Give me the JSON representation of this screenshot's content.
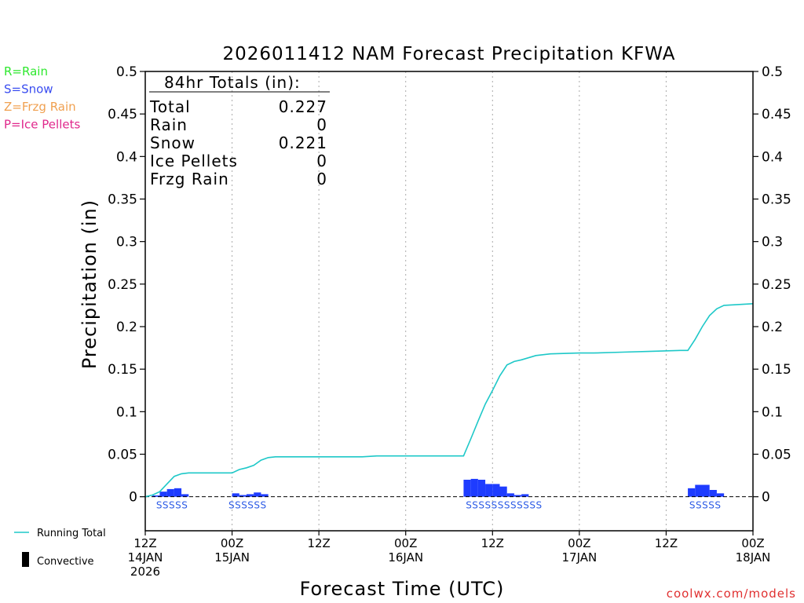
{
  "chart_data": {
    "type": "bar+line",
    "title": "2026011412 NAM Forecast Precipitation KFWA",
    "xlabel": "Forecast Time (UTC)",
    "ylabel": "Precipitation (in)",
    "ylim": [
      -0.04,
      0.5
    ],
    "yticks": [
      "0",
      "0.05",
      "0.1",
      "0.15",
      "0.2",
      "0.25",
      "0.3",
      "0.35",
      "0.4",
      "0.45",
      "0.5"
    ],
    "ytick_values": [
      0,
      0.05,
      0.1,
      0.15,
      0.2,
      0.25,
      0.3,
      0.35,
      0.4,
      0.45,
      0.5
    ],
    "xlim_hours": [
      0,
      84
    ],
    "xticks": [
      {
        "hour": 0,
        "line1": "12Z",
        "line2": "14JAN",
        "line3": "2026"
      },
      {
        "hour": 12,
        "line1": "00Z",
        "line2": "15JAN",
        "line3": ""
      },
      {
        "hour": 24,
        "line1": "12Z",
        "line2": "",
        "line3": ""
      },
      {
        "hour": 36,
        "line1": "00Z",
        "line2": "16JAN",
        "line3": ""
      },
      {
        "hour": 48,
        "line1": "12Z",
        "line2": "",
        "line3": ""
      },
      {
        "hour": 60,
        "line1": "00Z",
        "line2": "17JAN",
        "line3": ""
      },
      {
        "hour": 72,
        "line1": "12Z",
        "line2": "",
        "line3": ""
      },
      {
        "hour": 84,
        "line1": "00Z",
        "line2": "18JAN",
        "line3": ""
      }
    ],
    "gridlines_hours": [
      12,
      24,
      36,
      48,
      60,
      72
    ],
    "bar_width_hours": 1,
    "bars": [
      {
        "hour": 1.5,
        "value": 0.0015
      },
      {
        "hour": 2.5,
        "value": 0.006
      },
      {
        "hour": 3.5,
        "value": 0.009
      },
      {
        "hour": 4.5,
        "value": 0.01
      },
      {
        "hour": 5.5,
        "value": 0.003
      },
      {
        "hour": 12.5,
        "value": 0.004
      },
      {
        "hour": 13.5,
        "value": 0.002
      },
      {
        "hour": 14.5,
        "value": 0.003
      },
      {
        "hour": 15.5,
        "value": 0.005
      },
      {
        "hour": 16.5,
        "value": 0.003
      },
      {
        "hour": 44.5,
        "value": 0.02
      },
      {
        "hour": 45.5,
        "value": 0.021
      },
      {
        "hour": 46.5,
        "value": 0.02
      },
      {
        "hour": 47.5,
        "value": 0.015
      },
      {
        "hour": 48.5,
        "value": 0.015
      },
      {
        "hour": 49.5,
        "value": 0.012
      },
      {
        "hour": 50.5,
        "value": 0.004
      },
      {
        "hour": 51.5,
        "value": 0.002
      },
      {
        "hour": 52.5,
        "value": 0.003
      },
      {
        "hour": 75.5,
        "value": 0.01
      },
      {
        "hour": 76.5,
        "value": 0.014
      },
      {
        "hour": 77.5,
        "value": 0.014
      },
      {
        "hour": 78.5,
        "value": 0.008
      },
      {
        "hour": 79.5,
        "value": 0.004
      }
    ],
    "running_total": {
      "hours": [
        0,
        1,
        2,
        3,
        4,
        5,
        6,
        7,
        8,
        12,
        13,
        14,
        15,
        16,
        17,
        18,
        20,
        24,
        30,
        32,
        36,
        40,
        44,
        45,
        46,
        47,
        48,
        49,
        50,
        51,
        52,
        54,
        56,
        60,
        62,
        66,
        70,
        74,
        75,
        76,
        77,
        78,
        79,
        80,
        84
      ],
      "values": [
        0,
        0.002,
        0.006,
        0.015,
        0.024,
        0.027,
        0.028,
        0.028,
        0.028,
        0.028,
        0.032,
        0.034,
        0.037,
        0.043,
        0.046,
        0.047,
        0.047,
        0.047,
        0.047,
        0.048,
        0.048,
        0.048,
        0.048,
        0.068,
        0.089,
        0.109,
        0.125,
        0.142,
        0.155,
        0.159,
        0.161,
        0.166,
        0.168,
        0.169,
        0.169,
        0.17,
        0.171,
        0.172,
        0.172,
        0.185,
        0.2,
        0.213,
        0.221,
        0.225,
        0.227
      ]
    },
    "ptype_labels": [
      {
        "hour": 1.5,
        "text": "SSSSS"
      },
      {
        "hour": 11.5,
        "text": "SSSSSS"
      },
      {
        "hour": 44.3,
        "text": "SSSSSSSSSSSS"
      },
      {
        "hour": 75.2,
        "text": "SSSSS"
      }
    ],
    "totals_box": {
      "heading": "84hr Totals (in):",
      "rows": [
        {
          "label": "Total",
          "value": "0.227"
        },
        {
          "label": "Rain",
          "value": "0"
        },
        {
          "label": "Snow",
          "value": "0.221"
        },
        {
          "label": "Ice Pellets",
          "value": "0"
        },
        {
          "label": "Frzg Rain",
          "value": "0"
        }
      ]
    },
    "type_legend": [
      {
        "text": "R=Rain",
        "color": "#2ee82e"
      },
      {
        "text": "S=Snow",
        "color": "#3a4df0"
      },
      {
        "text": "Z=Frzg Rain",
        "color": "#f0a050"
      },
      {
        "text": "P=Ice Pellets",
        "color": "#e0288c"
      }
    ],
    "series_legend": [
      {
        "text": "Running Total",
        "kind": "line",
        "color": "#1ec8c8"
      },
      {
        "text": "Convective",
        "kind": "bar",
        "color": "#000000"
      }
    ],
    "colors": {
      "bar": "#1e3cff",
      "line": "#1ec8c8",
      "ptype_text": "#2e5ce6",
      "grid": "#aaaaaa"
    },
    "credit": "coolwx.com/models"
  }
}
